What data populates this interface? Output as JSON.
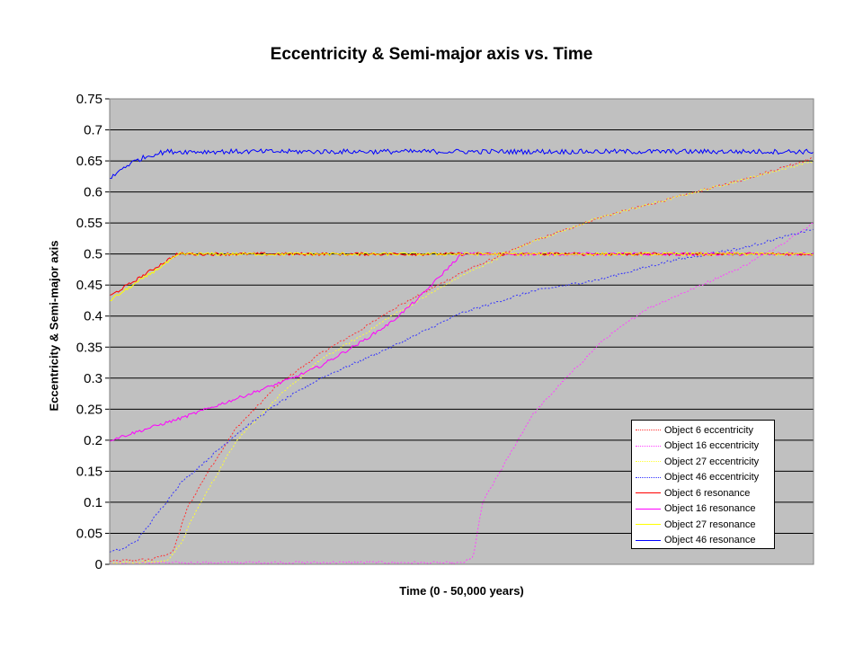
{
  "chart_data": {
    "type": "line",
    "title": "Eccentricity & Semi-major axis vs. Time",
    "xlabel": "Time (0 - 50,000 years)",
    "ylabel": "Eccentricity & Semi-major axis",
    "xlim": [
      0,
      50000
    ],
    "ylim": [
      0,
      0.75
    ],
    "yticks": [
      "0",
      "0.05",
      "0.1",
      "0.15",
      "0.2",
      "0.25",
      "0.3",
      "0.35",
      "0.4",
      "0.45",
      "0.5",
      "0.55",
      "0.6",
      "0.65",
      "0.7",
      "0.75"
    ],
    "grid": true,
    "legend_position": "bottom-right",
    "background": "#c0c0c0",
    "series": [
      {
        "name": "Object 6 eccentricity",
        "color": "#ff3333",
        "style": "dotted",
        "x": [
          0,
          3000,
          4500,
          5500,
          7000,
          9000,
          12000,
          15000,
          18000,
          20000,
          25000,
          30000,
          35000,
          40000,
          45000,
          50000
        ],
        "y": [
          0.005,
          0.008,
          0.02,
          0.09,
          0.15,
          0.22,
          0.29,
          0.34,
          0.38,
          0.41,
          0.47,
          0.52,
          0.56,
          0.59,
          0.62,
          0.655
        ]
      },
      {
        "name": "Object 16 eccentricity",
        "color": "#ff44ff",
        "style": "dotted",
        "x": [
          0,
          10000,
          20000,
          25000,
          25800,
          26500,
          28000,
          30000,
          32000,
          35000,
          38000,
          42000,
          45000,
          48000,
          50000
        ],
        "y": [
          0.002,
          0.003,
          0.003,
          0.002,
          0.01,
          0.1,
          0.16,
          0.24,
          0.29,
          0.36,
          0.41,
          0.45,
          0.48,
          0.52,
          0.55
        ]
      },
      {
        "name": "Object 27 eccentricity",
        "color": "#ffff33",
        "style": "dotted",
        "x": [
          0,
          4000,
          5000,
          6000,
          7000,
          9000,
          12000,
          15000,
          18000,
          20000,
          25000,
          30000,
          35000,
          40000,
          45000,
          50000
        ],
        "y": [
          0.002,
          0.005,
          0.03,
          0.08,
          0.12,
          0.2,
          0.27,
          0.33,
          0.37,
          0.4,
          0.465,
          0.52,
          0.56,
          0.59,
          0.62,
          0.65
        ]
      },
      {
        "name": "Object 46 eccentricity",
        "color": "#3333ff",
        "style": "dotted",
        "x": [
          0,
          1000,
          2000,
          3000,
          4000,
          5000,
          6000,
          7000,
          9000,
          12000,
          15000,
          18000,
          20000,
          25000,
          30000,
          35000,
          40000,
          45000,
          50000
        ],
        "y": [
          0.02,
          0.025,
          0.04,
          0.07,
          0.1,
          0.13,
          0.15,
          0.17,
          0.21,
          0.26,
          0.3,
          0.33,
          0.35,
          0.405,
          0.44,
          0.46,
          0.49,
          0.51,
          0.54
        ]
      },
      {
        "name": "Object 6 resonance",
        "color": "#ff0000",
        "style": "solid",
        "x": [
          0,
          2000,
          4800,
          5000,
          10000,
          20000,
          30000,
          40000,
          50000
        ],
        "y": [
          0.432,
          0.46,
          0.5,
          0.5,
          0.5,
          0.5,
          0.5,
          0.5,
          0.5
        ]
      },
      {
        "name": "Object 16 resonance",
        "color": "#ff00ff",
        "style": "solid",
        "x": [
          0,
          5000,
          10000,
          13000,
          15000,
          18000,
          20000,
          22000,
          25000,
          26000,
          30000,
          40000,
          49000,
          50000
        ],
        "y": [
          0.2,
          0.235,
          0.275,
          0.3,
          0.32,
          0.36,
          0.39,
          0.43,
          0.5,
          0.5,
          0.5,
          0.5,
          0.5,
          0.5
        ]
      },
      {
        "name": "Object 27 resonance",
        "color": "#ffff00",
        "style": "solid",
        "x": [
          0,
          2000,
          5000,
          10000,
          20000,
          30000,
          40000,
          50000
        ],
        "y": [
          0.425,
          0.455,
          0.5,
          0.5,
          0.5,
          0.5,
          0.5,
          0.5
        ]
      },
      {
        "name": "Object 46 resonance",
        "color": "#0000ff",
        "style": "solid",
        "x": [
          0,
          500,
          1000,
          2000,
          3000,
          4000,
          5000,
          10000,
          20000,
          30000,
          40000,
          50000
        ],
        "y": [
          0.62,
          0.63,
          0.64,
          0.652,
          0.66,
          0.665,
          0.665,
          0.665,
          0.665,
          0.665,
          0.665,
          0.665
        ]
      }
    ]
  }
}
